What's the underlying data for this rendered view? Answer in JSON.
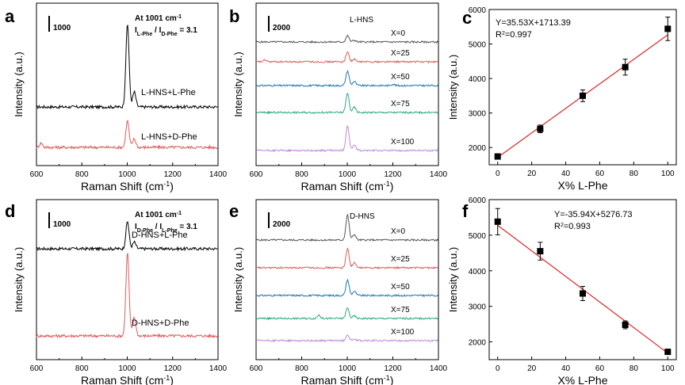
{
  "chart_data": [
    {
      "panel": "a",
      "type": "line",
      "xlabel": "Raman Shift (cm",
      "xlabel_sup": "-1",
      "xlabel_end": ")",
      "ylabel": "Intensity (a.u.)",
      "xticks": [
        "600",
        "800",
        "1000",
        "1200",
        "1400"
      ],
      "xlim": [
        600,
        1400
      ],
      "scale_bar": "1000",
      "annotation_title": "At 1001 cm",
      "annotation_title_sup": "-1",
      "ratio": {
        "num": "I",
        "num_sub": "L-Phe",
        "sep": " / ",
        "den": "I",
        "den_sub": "D-Phe",
        "value": " = 3.1"
      },
      "series": [
        {
          "name": "L-HNS+L-Phe",
          "color": "#000000",
          "peaks": [
            [
              1001,
              1.0
            ],
            [
              1031,
              0.18
            ]
          ]
        },
        {
          "name": "L-HNS+D-Phe",
          "color": "#e05a5a",
          "peaks": [
            [
              1001,
              0.32
            ],
            [
              1031,
              0.1
            ],
            [
              620,
              0.05
            ]
          ]
        }
      ]
    },
    {
      "panel": "b",
      "type": "line",
      "xlabel": "Raman Shift (cm",
      "xlabel_sup": "-1",
      "xlabel_end": ")",
      "ylabel": "Intensity (a.u.)",
      "xticks": [
        "600",
        "800",
        "1000",
        "1200",
        "1400"
      ],
      "xlim": [
        600,
        1400
      ],
      "scale_bar": "2000",
      "group_label": "L-HNS",
      "series": [
        {
          "name": "X=0",
          "color": "#555555",
          "peaks": [
            [
              1001,
              0.18
            ],
            [
              1031,
              0.05
            ]
          ]
        },
        {
          "name": "X=25",
          "color": "#e05a5a",
          "peaks": [
            [
              1001,
              0.28
            ],
            [
              1031,
              0.07
            ],
            [
              640,
              0.05
            ]
          ]
        },
        {
          "name": "X=50",
          "color": "#1f77b4",
          "peaks": [
            [
              1001,
              0.42
            ],
            [
              1031,
              0.12
            ],
            [
              1200,
              0.04
            ]
          ]
        },
        {
          "name": "X=75",
          "color": "#2ca87a",
          "peaks": [
            [
              1001,
              0.55
            ],
            [
              1031,
              0.15
            ]
          ]
        },
        {
          "name": "X=100",
          "color": "#c08ad8",
          "peaks": [
            [
              1001,
              0.72
            ],
            [
              1031,
              0.16
            ]
          ]
        }
      ]
    },
    {
      "panel": "c",
      "type": "scatter",
      "xlabel": "X% L-Phe",
      "ylabel": "Intensity (a.u.)",
      "xlim": [
        -5,
        105
      ],
      "ylim": [
        1500,
        6000
      ],
      "xticks": [
        0,
        20,
        40,
        60,
        80,
        100
      ],
      "yticks": [
        2000,
        3000,
        4000,
        5000,
        6000
      ],
      "x": [
        0,
        25,
        50,
        75,
        100
      ],
      "y": [
        1740,
        2540,
        3500,
        4330,
        5440
      ],
      "yerr": [
        60,
        110,
        170,
        230,
        340
      ],
      "fit": {
        "slope": 35.53,
        "intercept": 1713.39,
        "color": "#d62728"
      },
      "equation": "Y=35.53X+1713.39",
      "r2": "=0.997"
    },
    {
      "panel": "d",
      "type": "line",
      "xlabel": "Raman Shift (cm",
      "xlabel_sup": "-1",
      "xlabel_end": ")",
      "ylabel": "Intensity (a.u.)",
      "xticks": [
        "600",
        "800",
        "1000",
        "1200",
        "1400"
      ],
      "xlim": [
        600,
        1400
      ],
      "scale_bar": "1000",
      "annotation_title": "At 1001 cm",
      "annotation_title_sup": "-1",
      "ratio": {
        "num": "I",
        "num_sub": "D-Phe",
        "sep": " / ",
        "den": "I",
        "den_sub": "L-Phe",
        "value": " = 3.1"
      },
      "series": [
        {
          "name": "D-HNS+L-Phe",
          "color": "#000000",
          "peaks": [
            [
              1001,
              0.33
            ],
            [
              1031,
              0.08
            ]
          ]
        },
        {
          "name": "D-HNS+D-Phe",
          "color": "#e05a5a",
          "peaks": [
            [
              1001,
              1.0
            ],
            [
              1031,
              0.22
            ]
          ]
        }
      ]
    },
    {
      "panel": "e",
      "type": "line",
      "xlabel": "Raman Shift (cm",
      "xlabel_sup": "-1",
      "xlabel_end": ")",
      "ylabel": "Intensity (a.u.)",
      "xticks": [
        "600",
        "800",
        "1000",
        "1200",
        "1400"
      ],
      "xlim": [
        600,
        1400
      ],
      "scale_bar": "2000",
      "group_label": "D-HNS",
      "series": [
        {
          "name": "X=0",
          "color": "#555555",
          "peaks": [
            [
              1001,
              0.72
            ],
            [
              1031,
              0.16
            ]
          ]
        },
        {
          "name": "X=25",
          "color": "#e05a5a",
          "peaks": [
            [
              1001,
              0.55
            ],
            [
              1031,
              0.14
            ]
          ]
        },
        {
          "name": "X=50",
          "color": "#1f77b4",
          "peaks": [
            [
              1001,
              0.45
            ],
            [
              1031,
              0.12
            ]
          ]
        },
        {
          "name": "X=75",
          "color": "#2ca87a",
          "peaks": [
            [
              1001,
              0.3
            ],
            [
              1031,
              0.07
            ],
            [
              875,
              0.1
            ]
          ]
        },
        {
          "name": "X=100",
          "color": "#c08ad8",
          "peaks": [
            [
              1001,
              0.17
            ],
            [
              1031,
              0.04
            ]
          ]
        }
      ]
    },
    {
      "panel": "f",
      "type": "scatter",
      "xlabel": "X% L-Phe",
      "ylabel": "Intensity (a.u.)",
      "xlim": [
        -5,
        105
      ],
      "ylim": [
        1500,
        6000
      ],
      "xticks": [
        0,
        20,
        40,
        60,
        80,
        100
      ],
      "yticks": [
        2000,
        3000,
        4000,
        5000,
        6000
      ],
      "x": [
        0,
        25,
        50,
        75,
        100
      ],
      "y": [
        5380,
        4550,
        3360,
        2480,
        1720
      ],
      "yerr": [
        370,
        250,
        200,
        110,
        50
      ],
      "fit": {
        "slope": -35.94,
        "intercept": 5276.73,
        "color": "#d62728"
      },
      "equation": "Y=-35.94X+5276.73",
      "r2": "=0.993"
    }
  ]
}
